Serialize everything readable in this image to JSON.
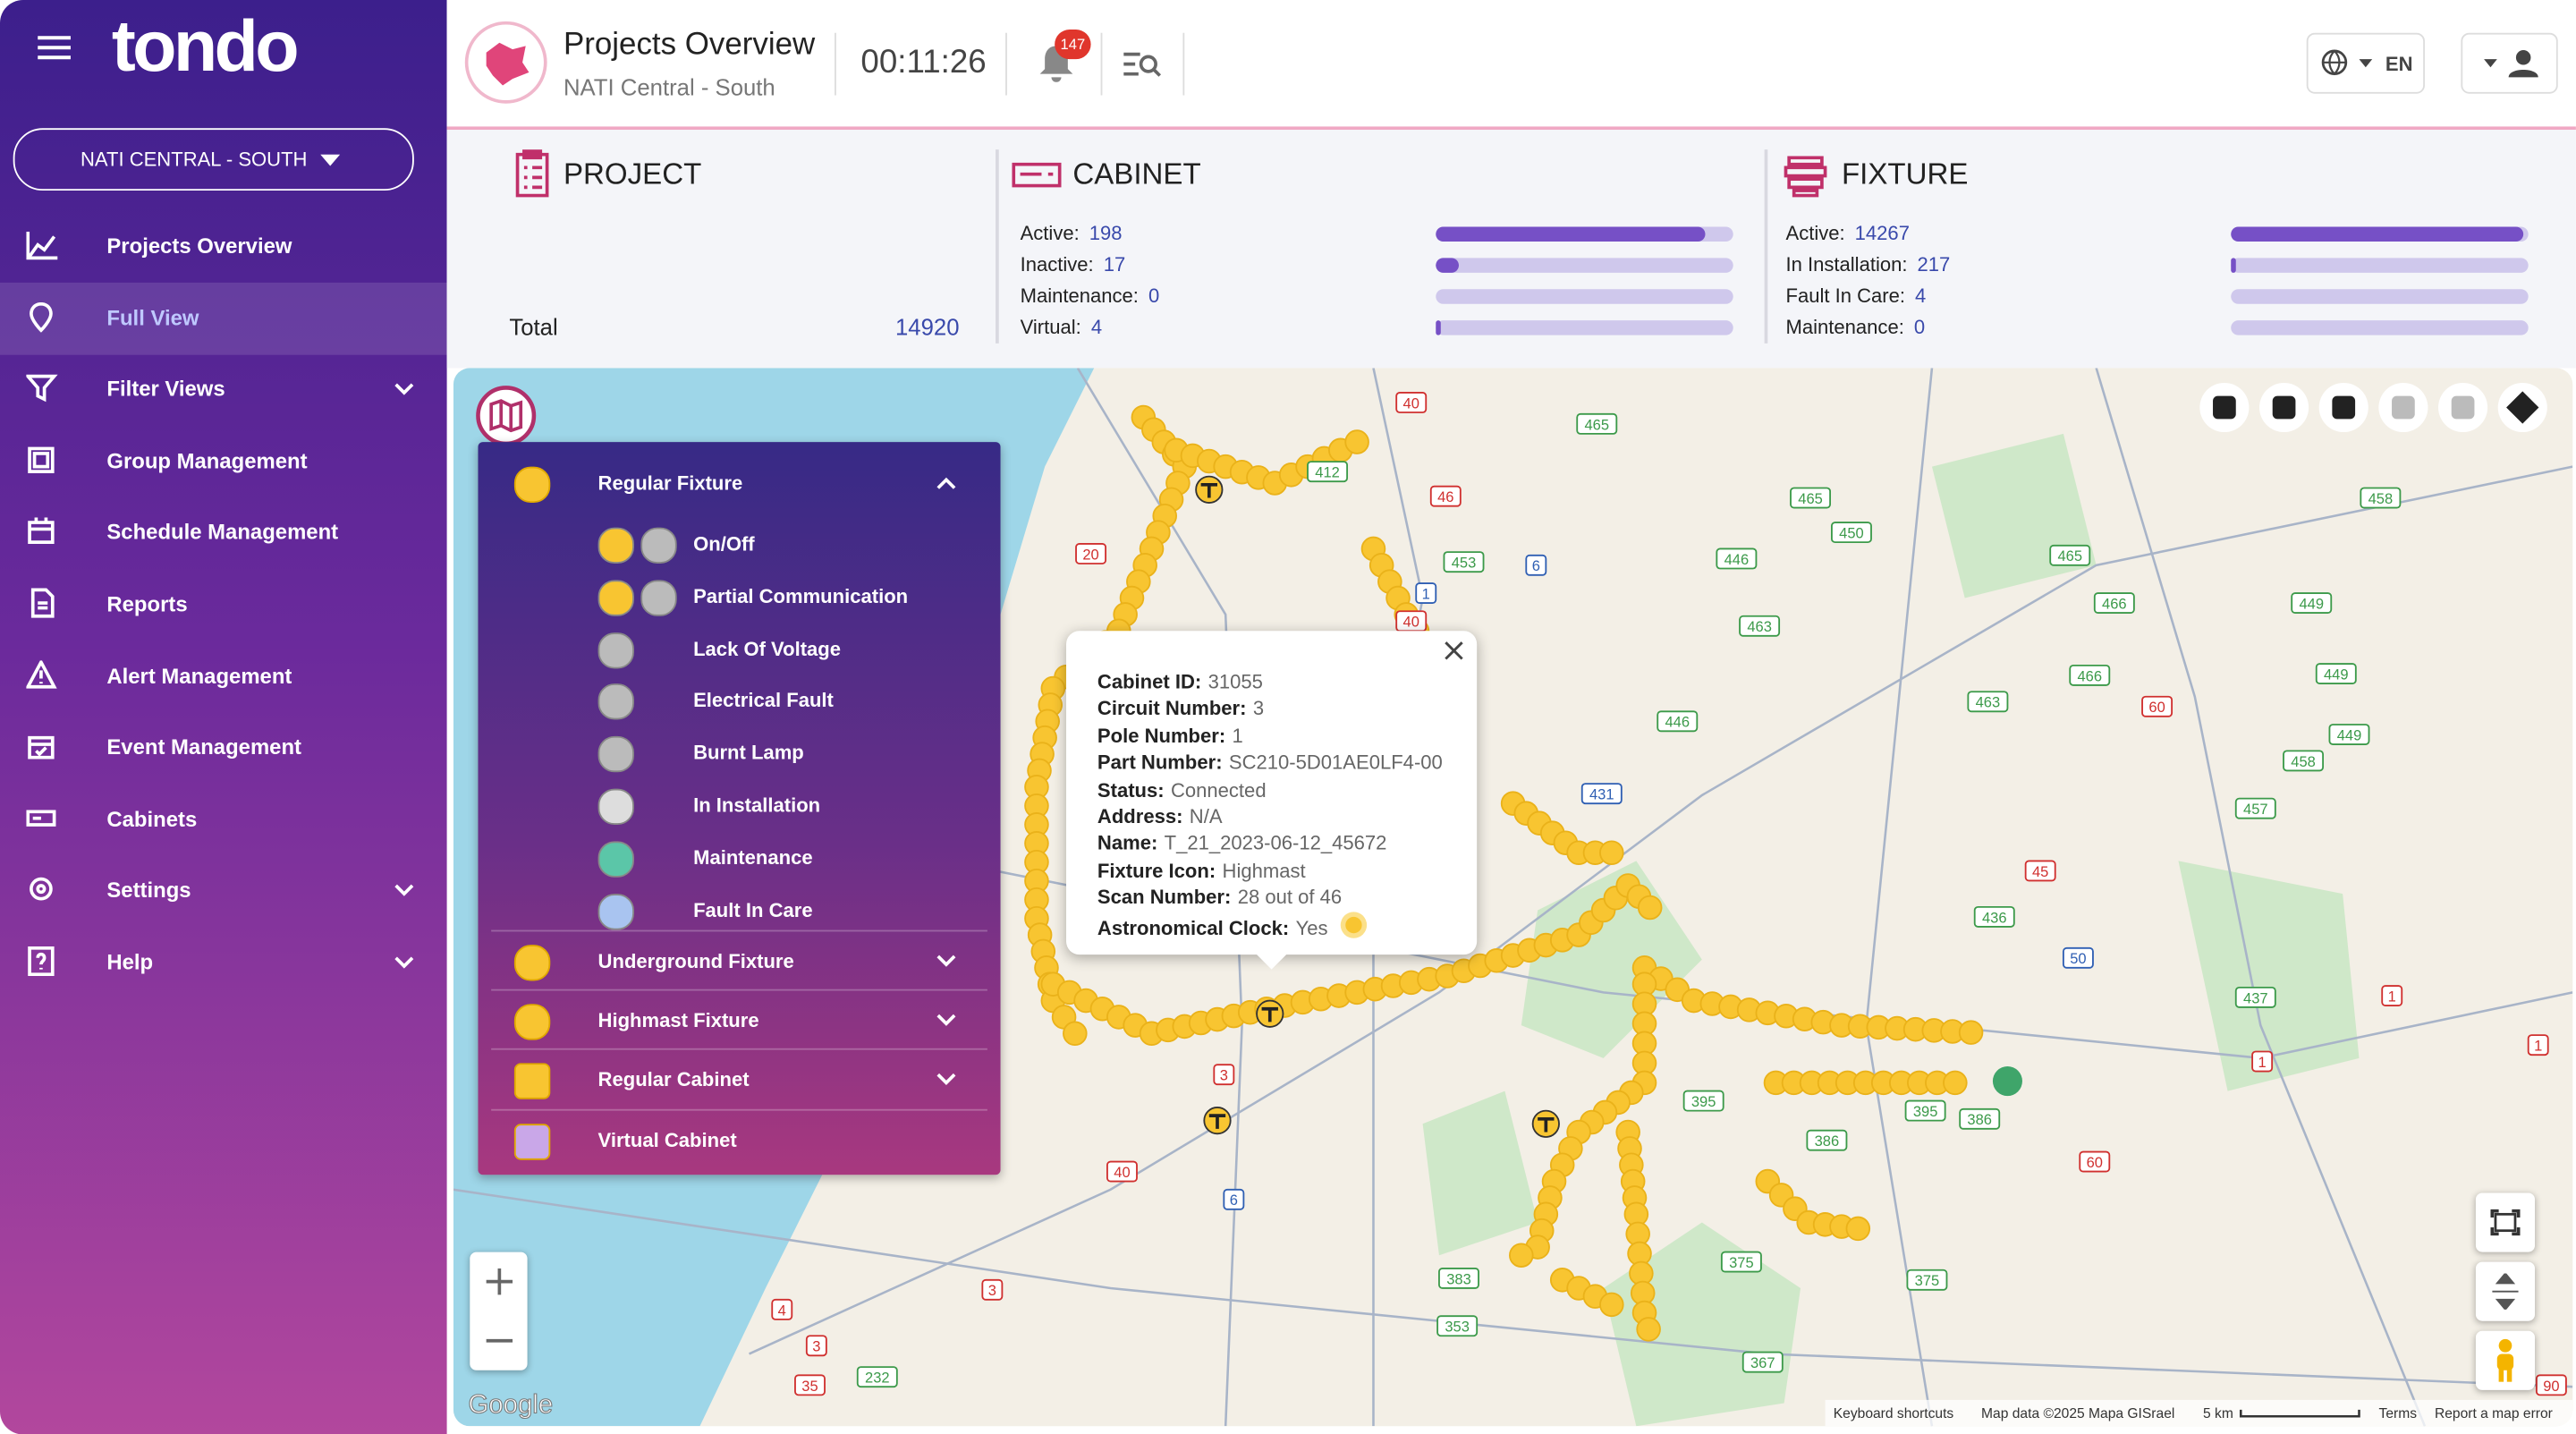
{
  "brand": "tondo",
  "sidebar": {
    "project_selector": "NATI CENTRAL - SOUTH",
    "menu": [
      "Projects Overview",
      "Full View",
      "Filter Views",
      "Group Management",
      "Schedule Management",
      "Reports",
      "Alert Management",
      "Event Management",
      "Cabinets",
      "Settings",
      "Help"
    ]
  },
  "header": {
    "title": "Projects Overview",
    "subtitle": "NATI Central - South",
    "timer": "00:11:26",
    "notifications": 147,
    "language": "EN"
  },
  "summary": {
    "project": {
      "title": "PROJECT",
      "total_label": "Total",
      "total": 14920
    },
    "cabinet": {
      "title": "CABINET",
      "rows": [
        {
          "label": "Active:",
          "value": 198
        },
        {
          "label": "Inactive:",
          "value": 17
        },
        {
          "label": "Maintenance:",
          "value": 0
        },
        {
          "label": "Virtual:",
          "value": 4
        }
      ]
    },
    "fixture": {
      "title": "FIXTURE",
      "rows": [
        {
          "label": "Active:",
          "value": 14267
        },
        {
          "label": "In Installation:",
          "value": 217
        },
        {
          "label": "Fault In Care:",
          "value": 4
        },
        {
          "label": "Maintenance:",
          "value": 0
        }
      ]
    }
  },
  "legend": {
    "groups": [
      {
        "label": "Regular Fixture",
        "items": [
          "On/Off",
          "Partial Communication",
          "Lack Of Voltage",
          "Electrical Fault",
          "Burnt Lamp",
          "In Installation",
          "Maintenance",
          "Fault In Care"
        ]
      },
      {
        "label": "Underground Fixture"
      },
      {
        "label": "Highmast Fixture"
      },
      {
        "label": "Regular Cabinet"
      },
      {
        "label": "Virtual Cabinet"
      }
    ]
  },
  "popup": {
    "rows": [
      {
        "label": "Cabinet ID:",
        "value": "31055"
      },
      {
        "label": "Circuit Number:",
        "value": "3"
      },
      {
        "label": "Pole Number:",
        "value": "1"
      },
      {
        "label": "Part Number:",
        "value": "SC210-5D01AE0LF4-00"
      },
      {
        "label": "Status:",
        "value": "Connected"
      },
      {
        "label": "Address:",
        "value": "N/A"
      },
      {
        "label": "Name:",
        "value": "T_21_2023-06-12_45672"
      },
      {
        "label": "Fixture Icon:",
        "value": "Highmast"
      },
      {
        "label": "Scan Number:",
        "value": "28 out of 46"
      },
      {
        "label": "Astronomical Clock:",
        "value": "Yes"
      }
    ]
  },
  "map": {
    "logo": "Google",
    "road_labels": [
      "40",
      "465",
      "412",
      "46",
      "453",
      "6",
      "1",
      "40",
      "20",
      "465",
      "450",
      "446",
      "465",
      "463",
      "466",
      "449",
      "458",
      "466",
      "449",
      "463",
      "60",
      "446",
      "449",
      "458",
      "431",
      "457",
      "45",
      "436",
      "50",
      "437",
      "1",
      "1",
      "1",
      "395",
      "395",
      "386",
      "386",
      "60",
      "3",
      "40",
      "6",
      "375",
      "375",
      "383",
      "353",
      "3",
      "4",
      "3",
      "232",
      "35",
      "367",
      "90"
    ],
    "attribution": [
      "Keyboard shortcuts",
      "Map data ©2025 Mapa GISrael",
      "5 km",
      "Terms",
      "Report a map error"
    ]
  }
}
